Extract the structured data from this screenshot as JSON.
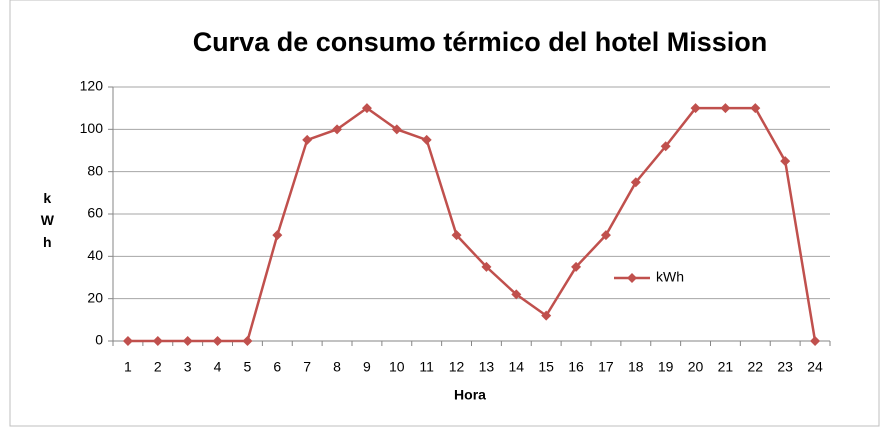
{
  "chart_data": {
    "type": "line",
    "title": "Curva de consumo térmico del hotel Mission",
    "x_label": "Hora",
    "y_label": "kWh",
    "categories": [
      "1",
      "2",
      "3",
      "4",
      "5",
      "6",
      "7",
      "8",
      "9",
      "10",
      "11",
      "12",
      "13",
      "14",
      "15",
      "16",
      "17",
      "18",
      "19",
      "20",
      "21",
      "22",
      "23",
      "24"
    ],
    "series": [
      {
        "name": "kWh",
        "color": "#c0504d",
        "values": [
          0,
          0,
          0,
          0,
          0,
          50,
          95,
          100,
          110,
          100,
          95,
          50,
          35,
          22,
          12,
          35,
          50,
          75,
          92,
          110,
          110,
          110,
          85,
          0
        ]
      }
    ],
    "ylim": [
      0,
      120
    ],
    "yticks": [
      0,
      20,
      40,
      60,
      80,
      100,
      120
    ],
    "grid": true,
    "legend": "right"
  }
}
